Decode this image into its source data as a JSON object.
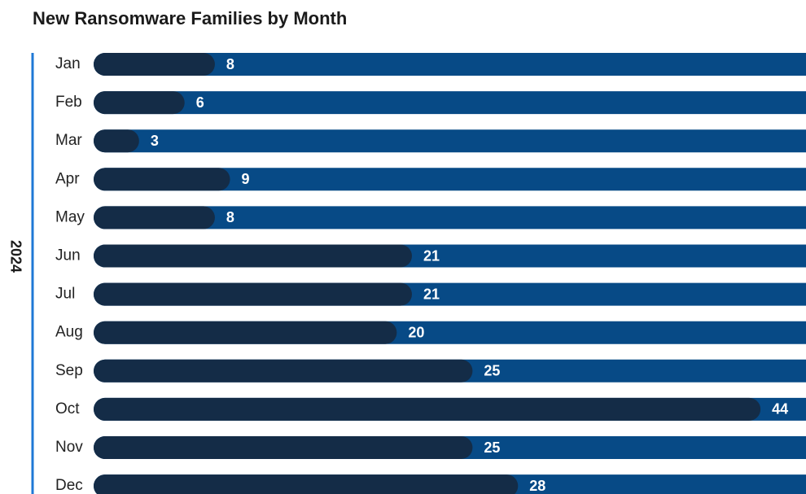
{
  "chart_data": {
    "type": "bar",
    "orientation": "horizontal",
    "title": "New Ransomware Families by Month",
    "group_label": "2024",
    "categories": [
      "Jan",
      "Feb",
      "Mar",
      "Apr",
      "May",
      "Jun",
      "Jul",
      "Aug",
      "Sep",
      "Oct",
      "Nov",
      "Dec"
    ],
    "values": [
      8,
      6,
      3,
      9,
      8,
      21,
      21,
      20,
      25,
      44,
      25,
      28
    ],
    "color": "#142c47",
    "track_color": "#074a86",
    "accent_color": "#1f78d6",
    "xlim": [
      0,
      47
    ]
  }
}
